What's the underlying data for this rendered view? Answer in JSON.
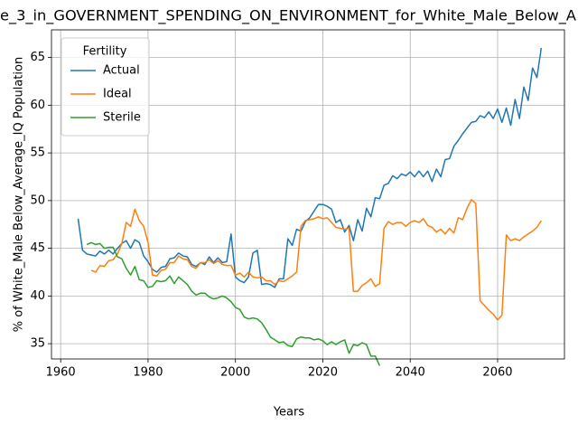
{
  "chart_data": {
    "type": "line",
    "title": "e_3_in_GOVERNMENT_SPENDING_ON_ENVIRONMENT_for_White_Male_Below_A",
    "xlabel": "Years",
    "ylabel": "% of White_Male Below_Average_IQ Population",
    "legend_title": "Fertility",
    "legend": "upper left",
    "grid": true,
    "xlim": [
      1957.9,
      2075.3
    ],
    "ylim": [
      33.4,
      67.9
    ],
    "xticks": [
      1960,
      1980,
      2000,
      2020,
      2040,
      2060
    ],
    "yticks": [
      35,
      40,
      45,
      50,
      55,
      60,
      65
    ],
    "x": [
      1964,
      1965,
      1966,
      1967,
      1968,
      1969,
      1970,
      1971,
      1972,
      1973,
      1974,
      1975,
      1976,
      1977,
      1978,
      1979,
      1980,
      1981,
      1982,
      1983,
      1984,
      1985,
      1986,
      1987,
      1988,
      1989,
      1990,
      1991,
      1992,
      1993,
      1994,
      1995,
      1996,
      1997,
      1998,
      1999,
      2000,
      2001,
      2002,
      2003,
      2004,
      2005,
      2006,
      2007,
      2008,
      2009,
      2010,
      2011,
      2012,
      2013,
      2014,
      2015,
      2016,
      2017,
      2018,
      2019,
      2020,
      2021,
      2022,
      2023,
      2024,
      2025,
      2026,
      2027,
      2028,
      2029,
      2030,
      2031,
      2032,
      2033,
      2034,
      2035,
      2036,
      2037,
      2038,
      2039,
      2040,
      2041,
      2042,
      2043,
      2044,
      2045,
      2046,
      2047,
      2048,
      2049,
      2050,
      2051,
      2052,
      2053,
      2054,
      2055,
      2056,
      2057,
      2058,
      2059,
      2060,
      2061,
      2062,
      2063,
      2064,
      2065,
      2066,
      2067,
      2068,
      2069,
      2070
    ],
    "series": [
      {
        "name": "Actual",
        "color": "#1f77b4",
        "values": [
          48.1,
          44.8,
          44.4,
          44.3,
          44.2,
          44.7,
          44.4,
          44.8,
          44.4,
          45.0,
          45.5,
          45.8,
          45.0,
          45.9,
          45.6,
          44.2,
          43.6,
          42.8,
          42.5,
          43.0,
          43.1,
          43.9,
          44.0,
          44.5,
          44.2,
          44.1,
          43.3,
          43.1,
          43.5,
          43.3,
          44.1,
          43.5,
          44.0,
          43.5,
          43.6,
          46.5,
          42.0,
          41.6,
          41.4,
          42.0,
          44.5,
          44.8,
          41.2,
          41.3,
          41.2,
          40.9,
          41.8,
          41.8,
          46.0,
          45.3,
          47.0,
          46.8,
          47.8,
          48.2,
          48.9,
          49.6,
          49.6,
          49.4,
          49.1,
          47.7,
          48.0,
          46.7,
          47.4,
          45.8,
          48.0,
          46.8,
          49.2,
          48.3,
          50.3,
          50.2,
          51.6,
          51.8,
          52.6,
          52.3,
          52.8,
          52.6,
          53.0,
          52.5,
          53.1,
          52.5,
          53.1,
          52.0,
          53.3,
          52.5,
          54.3,
          54.4,
          55.7,
          56.3,
          57.0,
          57.6,
          58.2,
          58.3,
          58.9,
          58.7,
          59.3,
          58.6,
          59.6,
          58.2,
          59.7,
          57.9,
          60.6,
          58.6,
          61.9,
          60.5,
          63.9,
          62.9,
          66.0
        ]
      },
      {
        "name": "Ideal",
        "color": "#ff7f0e",
        "values": [
          null,
          null,
          null,
          42.7,
          42.5,
          43.2,
          43.1,
          43.7,
          43.8,
          44.4,
          45.5,
          47.7,
          47.3,
          49.1,
          47.9,
          47.3,
          45.6,
          42.2,
          42.1,
          42.7,
          42.8,
          43.5,
          43.5,
          44.2,
          43.9,
          43.8,
          43.1,
          42.9,
          43.5,
          43.5,
          43.8,
          43.4,
          43.7,
          43.3,
          43.2,
          43.2,
          42.2,
          42.4,
          42.0,
          42.5,
          42.0,
          41.9,
          42.0,
          41.6,
          41.6,
          41.2,
          41.6,
          41.5,
          41.8,
          42.1,
          42.5,
          47.3,
          47.9,
          48.0,
          48.1,
          48.3,
          48.1,
          48.2,
          47.7,
          47.2,
          47.1,
          47.0,
          47.1,
          40.5,
          40.5,
          41.1,
          41.4,
          41.8,
          41.0,
          41.3,
          47.1,
          47.8,
          47.5,
          47.7,
          47.7,
          47.3,
          47.7,
          47.9,
          47.7,
          48.1,
          47.4,
          47.2,
          46.7,
          47.0,
          46.5,
          47.1,
          46.6,
          48.2,
          48.0,
          49.2,
          50.1,
          49.7,
          39.5,
          39.0,
          38.5,
          38.1,
          37.5,
          38.0,
          46.4,
          45.8,
          46.0,
          45.8,
          46.2,
          46.5,
          46.8,
          47.2,
          47.9
        ]
      },
      {
        "name": "Sterile",
        "color": "#2ca02c",
        "values": [
          null,
          null,
          45.4,
          45.6,
          45.4,
          45.5,
          45.0,
          45.1,
          45.1,
          44.1,
          43.9,
          42.9,
          42.2,
          43.1,
          41.7,
          41.6,
          40.9,
          41.0,
          41.6,
          41.5,
          41.6,
          42.1,
          41.3,
          42.0,
          41.6,
          41.2,
          40.5,
          40.1,
          40.3,
          40.3,
          39.9,
          39.7,
          39.8,
          40.0,
          39.8,
          39.4,
          38.8,
          38.6,
          37.8,
          37.6,
          37.7,
          37.6,
          37.2,
          36.5,
          35.7,
          35.4,
          35.1,
          35.2,
          34.8,
          34.7,
          35.5,
          35.7,
          35.6,
          35.6,
          35.4,
          35.5,
          35.3,
          34.9,
          35.2,
          34.9,
          35.2,
          35.4,
          34.0,
          34.9,
          34.8,
          35.1,
          34.9,
          33.7,
          33.7,
          32.7,
          null,
          null,
          null,
          null,
          null,
          null,
          null,
          null,
          null,
          null,
          null,
          null,
          null,
          null,
          null,
          null,
          null,
          null,
          null,
          null,
          null,
          null,
          null,
          null,
          null,
          null,
          null,
          null,
          null,
          null,
          null,
          null,
          null,
          null,
          null,
          null,
          null
        ]
      }
    ]
  }
}
